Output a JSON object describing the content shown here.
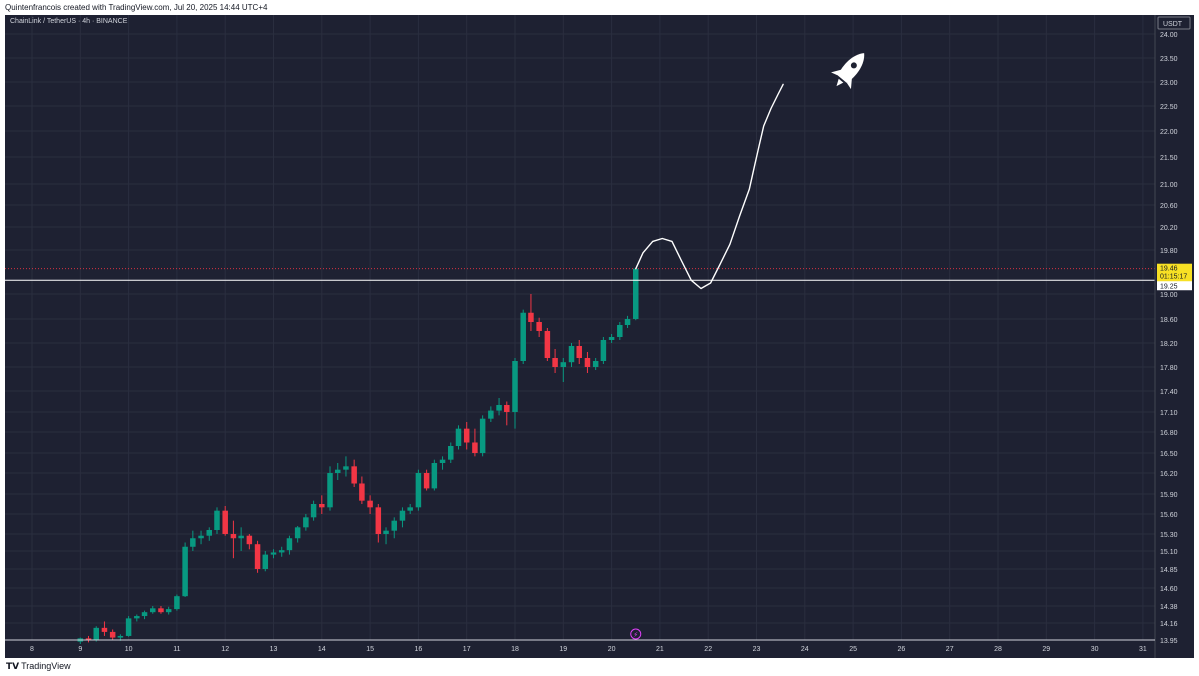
{
  "header": {
    "credit": "Quintenfrancois created with TradingView.com, Jul 20, 2025 14:44 UTC+4"
  },
  "chart_title": "ChainLink / TetherUS · 4h · BINANCE",
  "footer": {
    "brand": "TradingView",
    "brand_mark": "TV-logo-icon"
  },
  "colors": {
    "background": "#1e2132",
    "up": "#089981",
    "down": "#f23645",
    "price_tag": "#f7e024",
    "text": "#d1d4dc"
  },
  "chart_data": {
    "type": "candlestick",
    "title": "ChainLink / TetherUS · 4h · BINANCE",
    "currency": "USDT",
    "x_ticks": [
      "8",
      "9",
      "10",
      "11",
      "12",
      "13",
      "14",
      "15",
      "16",
      "17",
      "18",
      "19",
      "20",
      "21",
      "22",
      "23",
      "24",
      "25",
      "26",
      "27",
      "28",
      "29",
      "30",
      "31"
    ],
    "y_ticks": [
      "24.00",
      "23.50",
      "23.00",
      "22.50",
      "22.00",
      "21.50",
      "21.00",
      "20.60",
      "20.20",
      "19.80",
      "19.00",
      "18.60",
      "18.20",
      "17.80",
      "17.40",
      "17.10",
      "16.80",
      "16.50",
      "16.20",
      "15.90",
      "15.60",
      "15.30",
      "15.10",
      "14.85",
      "14.60",
      "14.38",
      "14.16",
      "13.95"
    ],
    "y_range": [
      13.95,
      24.1
    ],
    "price_tag": {
      "value": "19.46",
      "countdown": "01:15:17"
    },
    "level": {
      "value": "19.25"
    },
    "ohlc_period_days": 0.1667,
    "candles": [
      {
        "d": 9.0,
        "o": 13.93,
        "h": 13.98,
        "c": 13.97,
        "l": 13.9
      },
      {
        "d": 9.17,
        "o": 13.97,
        "h": 14.0,
        "c": 13.95,
        "l": 13.92
      },
      {
        "d": 9.33,
        "o": 13.95,
        "h": 14.12,
        "c": 14.1,
        "l": 13.93
      },
      {
        "d": 9.5,
        "o": 14.1,
        "h": 14.18,
        "c": 14.05,
        "l": 14.0
      },
      {
        "d": 9.67,
        "o": 14.05,
        "h": 14.08,
        "c": 13.98,
        "l": 13.95
      },
      {
        "d": 9.83,
        "o": 13.98,
        "h": 14.02,
        "c": 14.0,
        "l": 13.94
      },
      {
        "d": 10.0,
        "o": 14.0,
        "h": 14.25,
        "c": 14.22,
        "l": 13.99
      },
      {
        "d": 10.17,
        "o": 14.22,
        "h": 14.27,
        "c": 14.25,
        "l": 14.18
      },
      {
        "d": 10.33,
        "o": 14.25,
        "h": 14.32,
        "c": 14.3,
        "l": 14.21
      },
      {
        "d": 10.5,
        "o": 14.3,
        "h": 14.38,
        "c": 14.35,
        "l": 14.28
      },
      {
        "d": 10.67,
        "o": 14.35,
        "h": 14.38,
        "c": 14.3,
        "l": 14.28
      },
      {
        "d": 10.83,
        "o": 14.3,
        "h": 14.37,
        "c": 14.34,
        "l": 14.27
      },
      {
        "d": 11.0,
        "o": 14.34,
        "h": 14.52,
        "c": 14.5,
        "l": 14.32
      },
      {
        "d": 11.17,
        "o": 14.5,
        "h": 15.2,
        "c": 15.15,
        "l": 14.49
      },
      {
        "d": 11.33,
        "o": 15.15,
        "h": 15.35,
        "c": 15.25,
        "l": 15.1
      },
      {
        "d": 11.5,
        "o": 15.25,
        "h": 15.35,
        "c": 15.28,
        "l": 15.18
      },
      {
        "d": 11.67,
        "o": 15.28,
        "h": 15.4,
        "c": 15.36,
        "l": 15.22
      },
      {
        "d": 11.83,
        "o": 15.36,
        "h": 15.7,
        "c": 15.65,
        "l": 15.3
      },
      {
        "d": 12.0,
        "o": 15.65,
        "h": 15.72,
        "c": 15.3,
        "l": 15.28
      },
      {
        "d": 12.17,
        "o": 15.3,
        "h": 15.5,
        "c": 15.25,
        "l": 15.0
      },
      {
        "d": 12.33,
        "o": 15.25,
        "h": 15.4,
        "c": 15.28,
        "l": 15.1
      },
      {
        "d": 12.5,
        "o": 15.28,
        "h": 15.3,
        "c": 15.18,
        "l": 15.12
      },
      {
        "d": 12.67,
        "o": 15.18,
        "h": 15.22,
        "c": 14.85,
        "l": 14.8
      },
      {
        "d": 12.83,
        "o": 14.85,
        "h": 15.1,
        "c": 15.05,
        "l": 14.82
      },
      {
        "d": 13.0,
        "o": 15.05,
        "h": 15.12,
        "c": 15.08,
        "l": 15.0
      },
      {
        "d": 13.17,
        "o": 15.08,
        "h": 15.15,
        "c": 15.11,
        "l": 15.02
      },
      {
        "d": 13.33,
        "o": 15.11,
        "h": 15.28,
        "c": 15.25,
        "l": 15.05
      },
      {
        "d": 13.5,
        "o": 15.25,
        "h": 15.42,
        "c": 15.4,
        "l": 15.2
      },
      {
        "d": 13.67,
        "o": 15.4,
        "h": 15.6,
        "c": 15.55,
        "l": 15.35
      },
      {
        "d": 13.83,
        "o": 15.55,
        "h": 15.8,
        "c": 15.75,
        "l": 15.5
      },
      {
        "d": 14.0,
        "o": 15.75,
        "h": 15.88,
        "c": 15.7,
        "l": 15.6
      },
      {
        "d": 14.17,
        "o": 15.7,
        "h": 16.3,
        "c": 16.2,
        "l": 15.65
      },
      {
        "d": 14.33,
        "o": 16.2,
        "h": 16.35,
        "c": 16.25,
        "l": 16.1
      },
      {
        "d": 14.5,
        "o": 16.25,
        "h": 16.45,
        "c": 16.3,
        "l": 16.15
      },
      {
        "d": 14.67,
        "o": 16.3,
        "h": 16.4,
        "c": 16.05,
        "l": 16.0
      },
      {
        "d": 14.83,
        "o": 16.05,
        "h": 16.15,
        "c": 15.8,
        "l": 15.75
      },
      {
        "d": 15.0,
        "o": 15.8,
        "h": 15.88,
        "c": 15.7,
        "l": 15.6
      },
      {
        "d": 15.17,
        "o": 15.7,
        "h": 15.75,
        "c": 15.3,
        "l": 15.2
      },
      {
        "d": 15.33,
        "o": 15.3,
        "h": 15.4,
        "c": 15.35,
        "l": 15.18
      },
      {
        "d": 15.5,
        "o": 15.35,
        "h": 15.55,
        "c": 15.5,
        "l": 15.25
      },
      {
        "d": 15.67,
        "o": 15.5,
        "h": 15.7,
        "c": 15.65,
        "l": 15.4
      },
      {
        "d": 15.83,
        "o": 15.65,
        "h": 15.75,
        "c": 15.7,
        "l": 15.6
      },
      {
        "d": 16.0,
        "o": 15.7,
        "h": 16.25,
        "c": 16.2,
        "l": 15.65
      },
      {
        "d": 16.17,
        "o": 16.2,
        "h": 16.25,
        "c": 15.98,
        "l": 15.95
      },
      {
        "d": 16.33,
        "o": 15.98,
        "h": 16.4,
        "c": 16.35,
        "l": 15.95
      },
      {
        "d": 16.5,
        "o": 16.35,
        "h": 16.45,
        "c": 16.4,
        "l": 16.25
      },
      {
        "d": 16.67,
        "o": 16.4,
        "h": 16.65,
        "c": 16.6,
        "l": 16.35
      },
      {
        "d": 16.83,
        "o": 16.6,
        "h": 16.9,
        "c": 16.85,
        "l": 16.55
      },
      {
        "d": 17.0,
        "o": 16.85,
        "h": 16.95,
        "c": 16.65,
        "l": 16.55
      },
      {
        "d": 17.17,
        "o": 16.65,
        "h": 16.85,
        "c": 16.5,
        "l": 16.45
      },
      {
        "d": 17.33,
        "o": 16.5,
        "h": 17.05,
        "c": 17.0,
        "l": 16.45
      },
      {
        "d": 17.5,
        "o": 17.0,
        "h": 17.18,
        "c": 17.12,
        "l": 16.95
      },
      {
        "d": 17.67,
        "o": 17.12,
        "h": 17.3,
        "c": 17.2,
        "l": 17.05
      },
      {
        "d": 17.83,
        "o": 17.2,
        "h": 17.25,
        "c": 17.1,
        "l": 16.9
      },
      {
        "d": 18.0,
        "o": 17.1,
        "h": 17.95,
        "c": 17.9,
        "l": 16.85
      },
      {
        "d": 18.17,
        "o": 17.9,
        "h": 18.75,
        "c": 18.7,
        "l": 17.85
      },
      {
        "d": 18.33,
        "o": 18.7,
        "h": 19.0,
        "c": 18.55,
        "l": 18.4
      },
      {
        "d": 18.5,
        "o": 18.55,
        "h": 18.62,
        "c": 18.4,
        "l": 18.3
      },
      {
        "d": 18.67,
        "o": 18.4,
        "h": 18.45,
        "c": 17.95,
        "l": 17.9
      },
      {
        "d": 18.83,
        "o": 17.95,
        "h": 18.1,
        "c": 17.8,
        "l": 17.7
      },
      {
        "d": 19.0,
        "o": 17.8,
        "h": 17.95,
        "c": 17.88,
        "l": 17.55
      },
      {
        "d": 19.17,
        "o": 17.88,
        "h": 18.2,
        "c": 18.15,
        "l": 17.8
      },
      {
        "d": 19.33,
        "o": 18.15,
        "h": 18.25,
        "c": 17.95,
        "l": 17.85
      },
      {
        "d": 19.5,
        "o": 17.95,
        "h": 18.05,
        "c": 17.8,
        "l": 17.7
      },
      {
        "d": 19.67,
        "o": 17.8,
        "h": 17.95,
        "c": 17.9,
        "l": 17.75
      },
      {
        "d": 19.83,
        "o": 17.9,
        "h": 18.3,
        "c": 18.25,
        "l": 17.85
      },
      {
        "d": 20.0,
        "o": 18.25,
        "h": 18.35,
        "c": 18.3,
        "l": 18.2
      },
      {
        "d": 20.17,
        "o": 18.3,
        "h": 18.55,
        "c": 18.5,
        "l": 18.25
      },
      {
        "d": 20.33,
        "o": 18.5,
        "h": 18.65,
        "c": 18.6,
        "l": 18.45
      },
      {
        "d": 20.5,
        "o": 18.6,
        "h": 19.46,
        "c": 19.46,
        "l": 18.58
      }
    ],
    "projection": [
      [
        20.5,
        19.46
      ],
      [
        20.65,
        19.75
      ],
      [
        20.85,
        19.95
      ],
      [
        21.05,
        20.0
      ],
      [
        21.25,
        19.95
      ],
      [
        21.45,
        19.6
      ],
      [
        21.65,
        19.25
      ],
      [
        21.85,
        19.1
      ],
      [
        22.05,
        19.2
      ],
      [
        22.25,
        19.55
      ],
      [
        22.45,
        19.9
      ],
      [
        22.65,
        20.4
      ],
      [
        22.85,
        20.9
      ],
      [
        22.95,
        21.3
      ],
      [
        23.05,
        21.7
      ],
      [
        23.15,
        22.1
      ],
      [
        23.3,
        22.45
      ],
      [
        23.45,
        22.75
      ],
      [
        23.55,
        22.95
      ]
    ]
  }
}
